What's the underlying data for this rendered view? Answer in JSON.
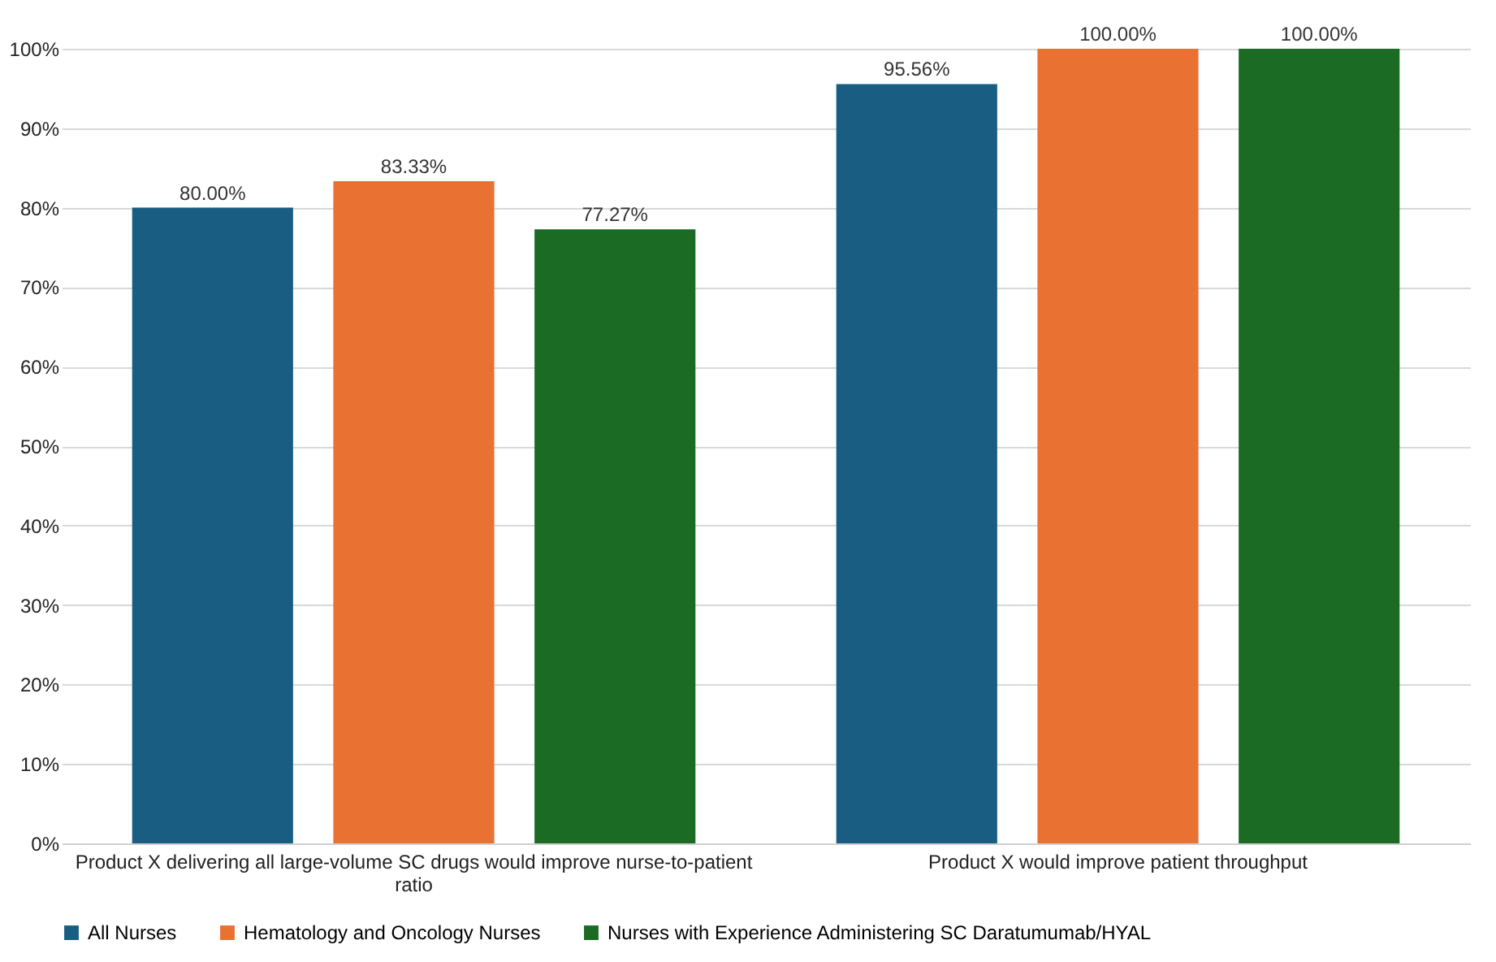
{
  "chart_data": {
    "type": "bar",
    "categories": [
      "Product X delivering all large-volume SC drugs would improve nurse-to-patient ratio",
      "Product X would improve patient throughput"
    ],
    "series": [
      {
        "name": "All Nurses",
        "color": "#195e82",
        "values": [
          80.0,
          95.56
        ],
        "value_labels": [
          "80.00%",
          "95.56%"
        ]
      },
      {
        "name": "Hematology and Oncology Nurses",
        "color": "#e97132",
        "values": [
          83.33,
          100.0
        ],
        "value_labels": [
          "83.33%",
          "100.00%"
        ]
      },
      {
        "name": "Nurses with Experience Administering SC Daratumumab/HYAL",
        "color": "#1b6b24",
        "values": [
          77.27,
          100.0
        ],
        "value_labels": [
          "77.27%",
          "100.00%"
        ]
      }
    ],
    "ylim": [
      0,
      100
    ],
    "yticks": [
      {
        "value": 0,
        "label": "0%"
      },
      {
        "value": 10,
        "label": "10%"
      },
      {
        "value": 20,
        "label": "20%"
      },
      {
        "value": 30,
        "label": "30%"
      },
      {
        "value": 40,
        "label": "40%"
      },
      {
        "value": 50,
        "label": "50%"
      },
      {
        "value": 60,
        "label": "60%"
      },
      {
        "value": 70,
        "label": "70%"
      },
      {
        "value": 80,
        "label": "80%"
      },
      {
        "value": 90,
        "label": "90%"
      },
      {
        "value": 100,
        "label": "100%"
      }
    ],
    "grid": "y",
    "legend": "bottom"
  }
}
